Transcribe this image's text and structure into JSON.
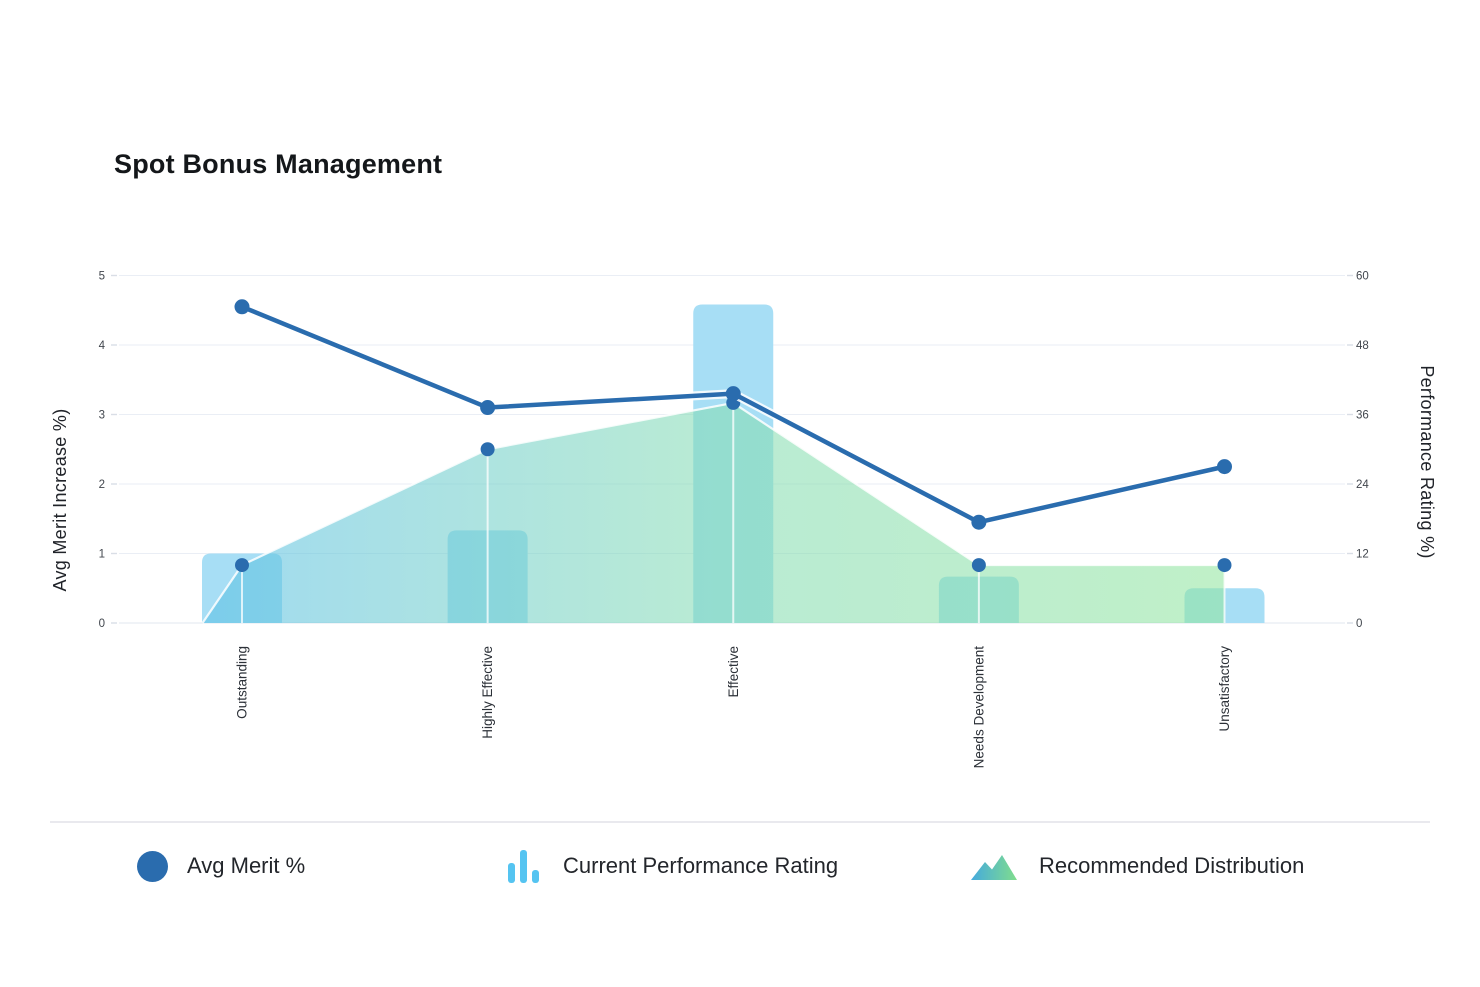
{
  "title": "Spot Bonus Management",
  "chart_data": {
    "type": "combo",
    "categories": [
      "Outstanding",
      "Highly Effective",
      "Effective",
      "Needs Development",
      "Unsatisfactory"
    ],
    "series": [
      {
        "name": "Avg Merit %",
        "type": "line",
        "axis": "left",
        "values": [
          4.55,
          3.1,
          3.3,
          1.45,
          2.25
        ],
        "color": "#2a6cae"
      },
      {
        "name": "Current Performance Rating",
        "type": "bar",
        "axis": "right",
        "values": [
          12,
          16,
          55,
          8,
          6
        ],
        "color": "#a7def5"
      },
      {
        "name": "Recommended Distribution",
        "type": "area",
        "axis": "right",
        "values": [
          10,
          30,
          38,
          10,
          10
        ],
        "gradient": [
          "#5fc1e6",
          "#86dcb4",
          "#92e5a0"
        ],
        "marker_color": "#2a6cae"
      }
    ],
    "left_axis": {
      "label": "Avg Merit Increase %)",
      "min": 0,
      "max": 5,
      "ticks": [
        "0",
        "1",
        "2",
        "3",
        "4",
        "5"
      ]
    },
    "right_axis": {
      "label": "Performance Rating %)",
      "min": 0,
      "max": 60,
      "ticks": [
        "0",
        "12",
        "24",
        "36",
        "48",
        "60"
      ]
    },
    "grid": true,
    "legend_position": "bottom"
  },
  "legend": {
    "items": [
      {
        "label": "Avg Merit %",
        "swatch": "circle",
        "color": "#2a6cae"
      },
      {
        "label": "Current Performance Rating",
        "swatch": "bars",
        "color": "#55c4f1"
      },
      {
        "label": "Recommended Distribution",
        "swatch": "mountain",
        "color_start": "#45aadd",
        "color_end": "#80dd8d"
      }
    ]
  }
}
